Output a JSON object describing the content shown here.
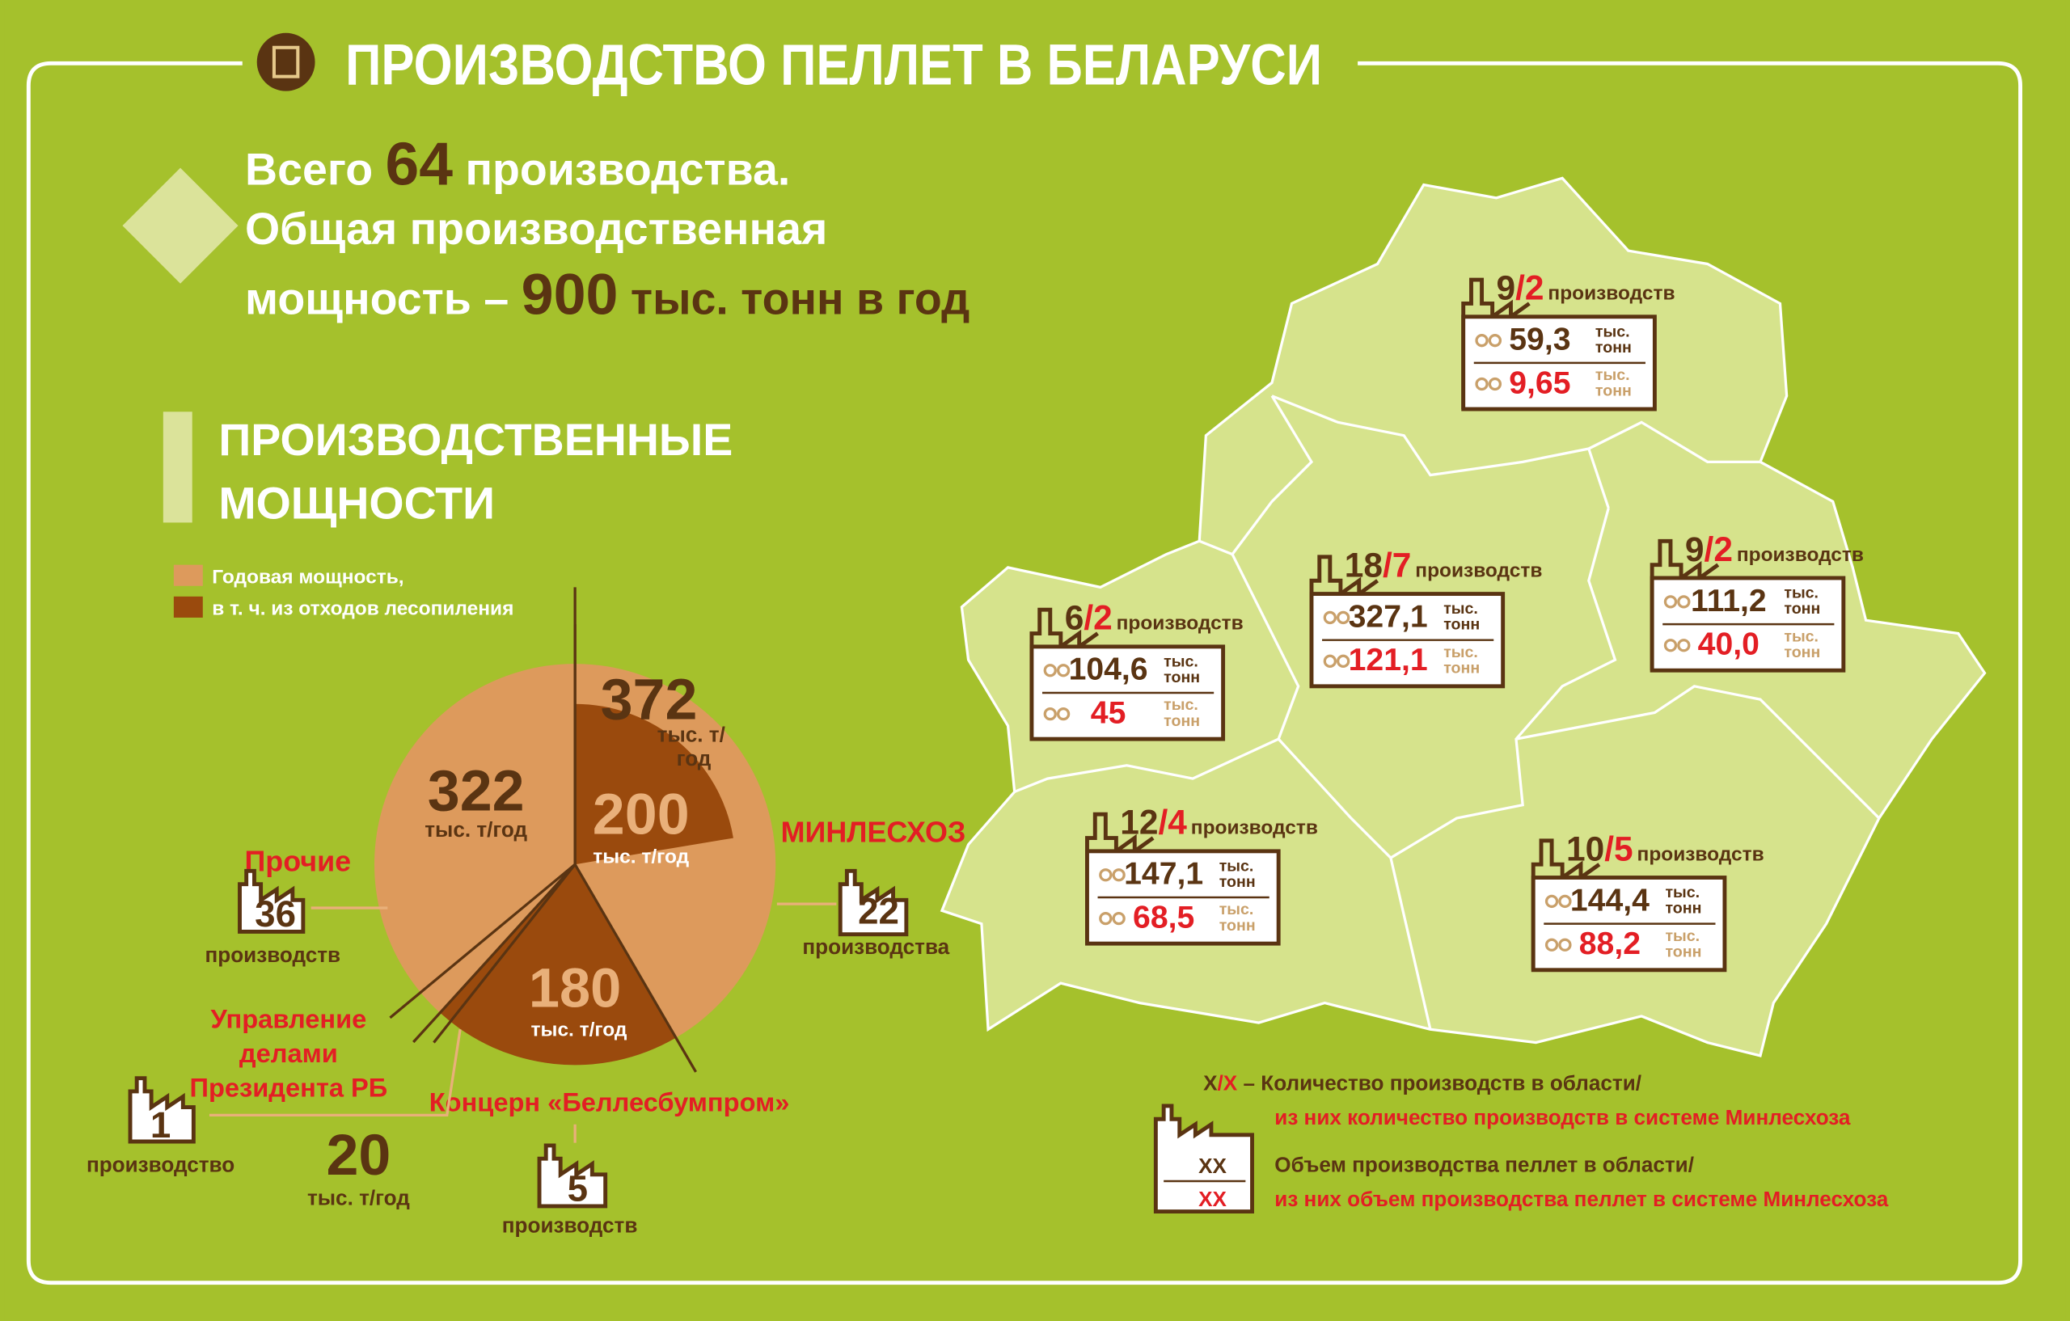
{
  "header": {
    "title": "ПРОИЗВОДСТВО ПЕЛЛЕТ В БЕЛАРУСИ"
  },
  "summary": {
    "total_prefix": "Всего",
    "total_count": "64",
    "total_suffix": "производства.",
    "line2": "Общая производственная",
    "capacity_prefix": "мощность –",
    "capacity_value": "900",
    "capacity_unit": "тыс. тонн в год"
  },
  "chart_data": {
    "type": "pie",
    "title": [
      "ПРОИЗВОДСТВЕННЫЕ",
      "МОЩНОСТИ"
    ],
    "series": [
      {
        "name": "Годовая мощность,",
        "color": "#dd9a5c"
      },
      {
        "name": "в т. ч. из отходов лесопиления",
        "color": "#9a4a0d"
      }
    ],
    "slices": [
      {
        "name": "МИНЛЕСХОЗ",
        "value": 372,
        "unit": [
          "тыс. т/",
          "год"
        ],
        "waste": 200,
        "waste_unit": "тыс. т/год",
        "count": "22",
        "count_label": "производства",
        "color": "#dd9a5c"
      },
      {
        "name": "Концерн «Беллесбумпром»",
        "value": 180,
        "unit": [
          "тыс. т/год"
        ],
        "count": "5",
        "count_label": "производств",
        "color": "#9a4a0d"
      },
      {
        "name": [
          "Управление",
          "делами",
          "Президента РБ"
        ],
        "value": 20,
        "unit": [
          "тыс. т/год"
        ],
        "count": "1",
        "count_label": "производство",
        "color": "#dd9a5c"
      },
      {
        "name": "Прочие",
        "value": 322,
        "unit": [
          "тыс. т/год"
        ],
        "count": "36",
        "count_label": "производств",
        "color": "#dd9a5c"
      }
    ]
  },
  "map": {
    "unit": [
      "тыс.",
      "тонн"
    ],
    "regions": [
      {
        "total": "9",
        "minleshoz": "2",
        "label": "производств",
        "volume": "59,3",
        "minleshoz_volume": "9,65"
      },
      {
        "total": "6",
        "minleshoz": "2",
        "label": "производств",
        "volume": "104,6",
        "minleshoz_volume": "45"
      },
      {
        "total": "18",
        "minleshoz": "7",
        "label": "производств",
        "volume": "327,1",
        "minleshoz_volume": "121,1"
      },
      {
        "total": "9",
        "minleshoz": "2",
        "label": "производств",
        "volume": "111,2",
        "minleshoz_volume": "40,0"
      },
      {
        "total": "12",
        "minleshoz": "4",
        "label": "производств",
        "volume": "147,1",
        "minleshoz_volume": "68,5"
      },
      {
        "total": "10",
        "minleshoz": "5",
        "label": "производств",
        "volume": "144,4",
        "minleshoz_volume": "88,2"
      }
    ]
  },
  "legend": {
    "x1": "X",
    "slash": "/",
    "x2": "X",
    "count_text": "– Количество производств в области/",
    "count_text2": "из них количество производств в системе Минлесхоза",
    "xx1": "XX",
    "xx2": "XX",
    "volume_text": "Объем производства пеллет в области/",
    "volume_text2": "из них объем производства пеллет в системе Минлесхоза"
  }
}
